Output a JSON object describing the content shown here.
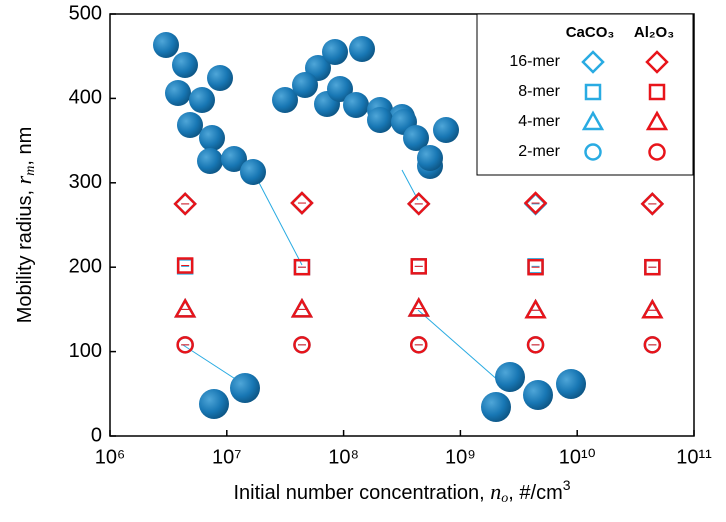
{
  "chart_data": {
    "type": "scatter",
    "xlabel": [
      "Initial number concentration, ",
      "n",
      "o",
      ", #/cm",
      "3"
    ],
    "ylabel": [
      "Mobility radius, ",
      "r",
      "m",
      ", nm"
    ],
    "x": [
      4400000,
      44000000,
      440000000,
      4400000000,
      44000000000
    ],
    "xlim": [
      1000000,
      100000000000
    ],
    "log_x": true,
    "xticks": [
      {
        "value": 1000000,
        "label": "10⁶"
      },
      {
        "value": 10000000,
        "label": "10⁷"
      },
      {
        "value": 100000000,
        "label": "10⁸"
      },
      {
        "value": 1000000000,
        "label": "10⁹"
      },
      {
        "value": 10000000000,
        "label": "10¹⁰"
      },
      {
        "value": 100000000000,
        "label": "10¹¹"
      }
    ],
    "ylim": [
      0,
      500
    ],
    "yticks": [
      0,
      100,
      200,
      300,
      400,
      500
    ],
    "markers": [
      {
        "name": "16-mer",
        "shape": "diamond"
      },
      {
        "name": "8-mer",
        "shape": "square"
      },
      {
        "name": "4-mer",
        "shape": "triangle"
      },
      {
        "name": "2-mer",
        "shape": "circle"
      }
    ],
    "series": [
      {
        "name": "CaCO₃",
        "color": "#29abe2",
        "values": [
          [
            275,
            276,
            275,
            275,
            275
          ],
          [
            201,
            200,
            201,
            201,
            200
          ],
          [
            150,
            150,
            151,
            149,
            149
          ],
          [
            108,
            108,
            108,
            108,
            108
          ]
        ]
      },
      {
        "name": "Al₂O₃",
        "color": "#e8141a",
        "values": [
          [
            275,
            276,
            275,
            276,
            275
          ],
          [
            202,
            200,
            201,
            200,
            200
          ],
          [
            150,
            150,
            151,
            149,
            149
          ],
          [
            108,
            108,
            108,
            108,
            108
          ]
        ]
      }
    ]
  }
}
